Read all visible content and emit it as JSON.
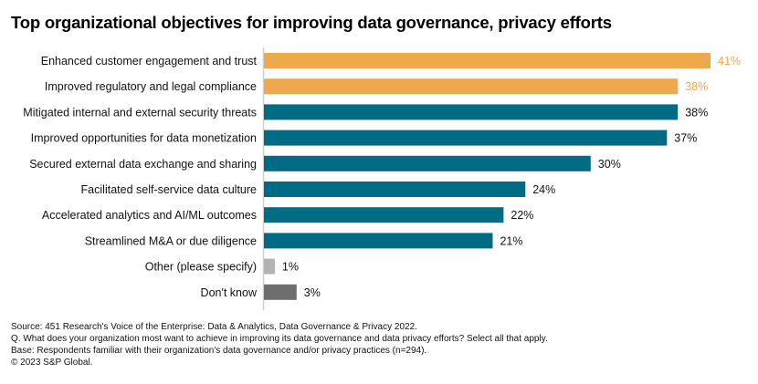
{
  "chart_data": {
    "type": "bar",
    "orientation": "horizontal",
    "title": "Top organizational objectives for improving data governance, privacy efforts",
    "xlabel": "",
    "ylabel": "",
    "xlim": [
      0,
      41
    ],
    "grid": false,
    "legend": "none",
    "value_suffix": "%",
    "categories": [
      "Enhanced customer engagement and trust",
      "Improved regulatory and legal compliance",
      "Mitigated internal and external security threats",
      "Improved opportunities for data monetization",
      "Secured external data exchange and sharing",
      "Facilitated self-service data culture",
      "Accelerated analytics and AI/ML outcomes",
      "Streamlined M&A or due diligence",
      "Other (please specify)",
      "Don't know"
    ],
    "values": [
      41,
      38,
      38,
      37,
      30,
      24,
      22,
      21,
      1,
      3
    ],
    "labels": [
      "41%",
      "38%",
      "38%",
      "37%",
      "30%",
      "24%",
      "22%",
      "21%",
      "1%",
      "3%"
    ],
    "bar_colors": [
      "#F0A84C",
      "#F0A84C",
      "#006B85",
      "#006B85",
      "#006B85",
      "#006B85",
      "#006B85",
      "#006B85",
      "#B3B3B3",
      "#6E6E6E"
    ],
    "label_colors": [
      "#F0A84C",
      "#F0A84C",
      "#111111",
      "#111111",
      "#111111",
      "#111111",
      "#111111",
      "#111111",
      "#111111",
      "#111111"
    ]
  },
  "colors": {
    "highlight": "#F0A84C",
    "primary": "#006B85",
    "other": "#B3B3B3",
    "dont_know": "#6E6E6E",
    "axis": "#D0D0D0"
  },
  "footnotes": {
    "source": "Source: 451 Research's Voice of the Enterprise: Data & Analytics, Data Governance & Privacy 2022.",
    "question": "Q. What does your organization most want to achieve in improving its data governance and data privacy efforts? Select all that apply.",
    "base": "Base: Respondents familiar with their organization's data governance and/or privacy practices (n=294).",
    "copyright": "© 2023 S&P Global."
  }
}
